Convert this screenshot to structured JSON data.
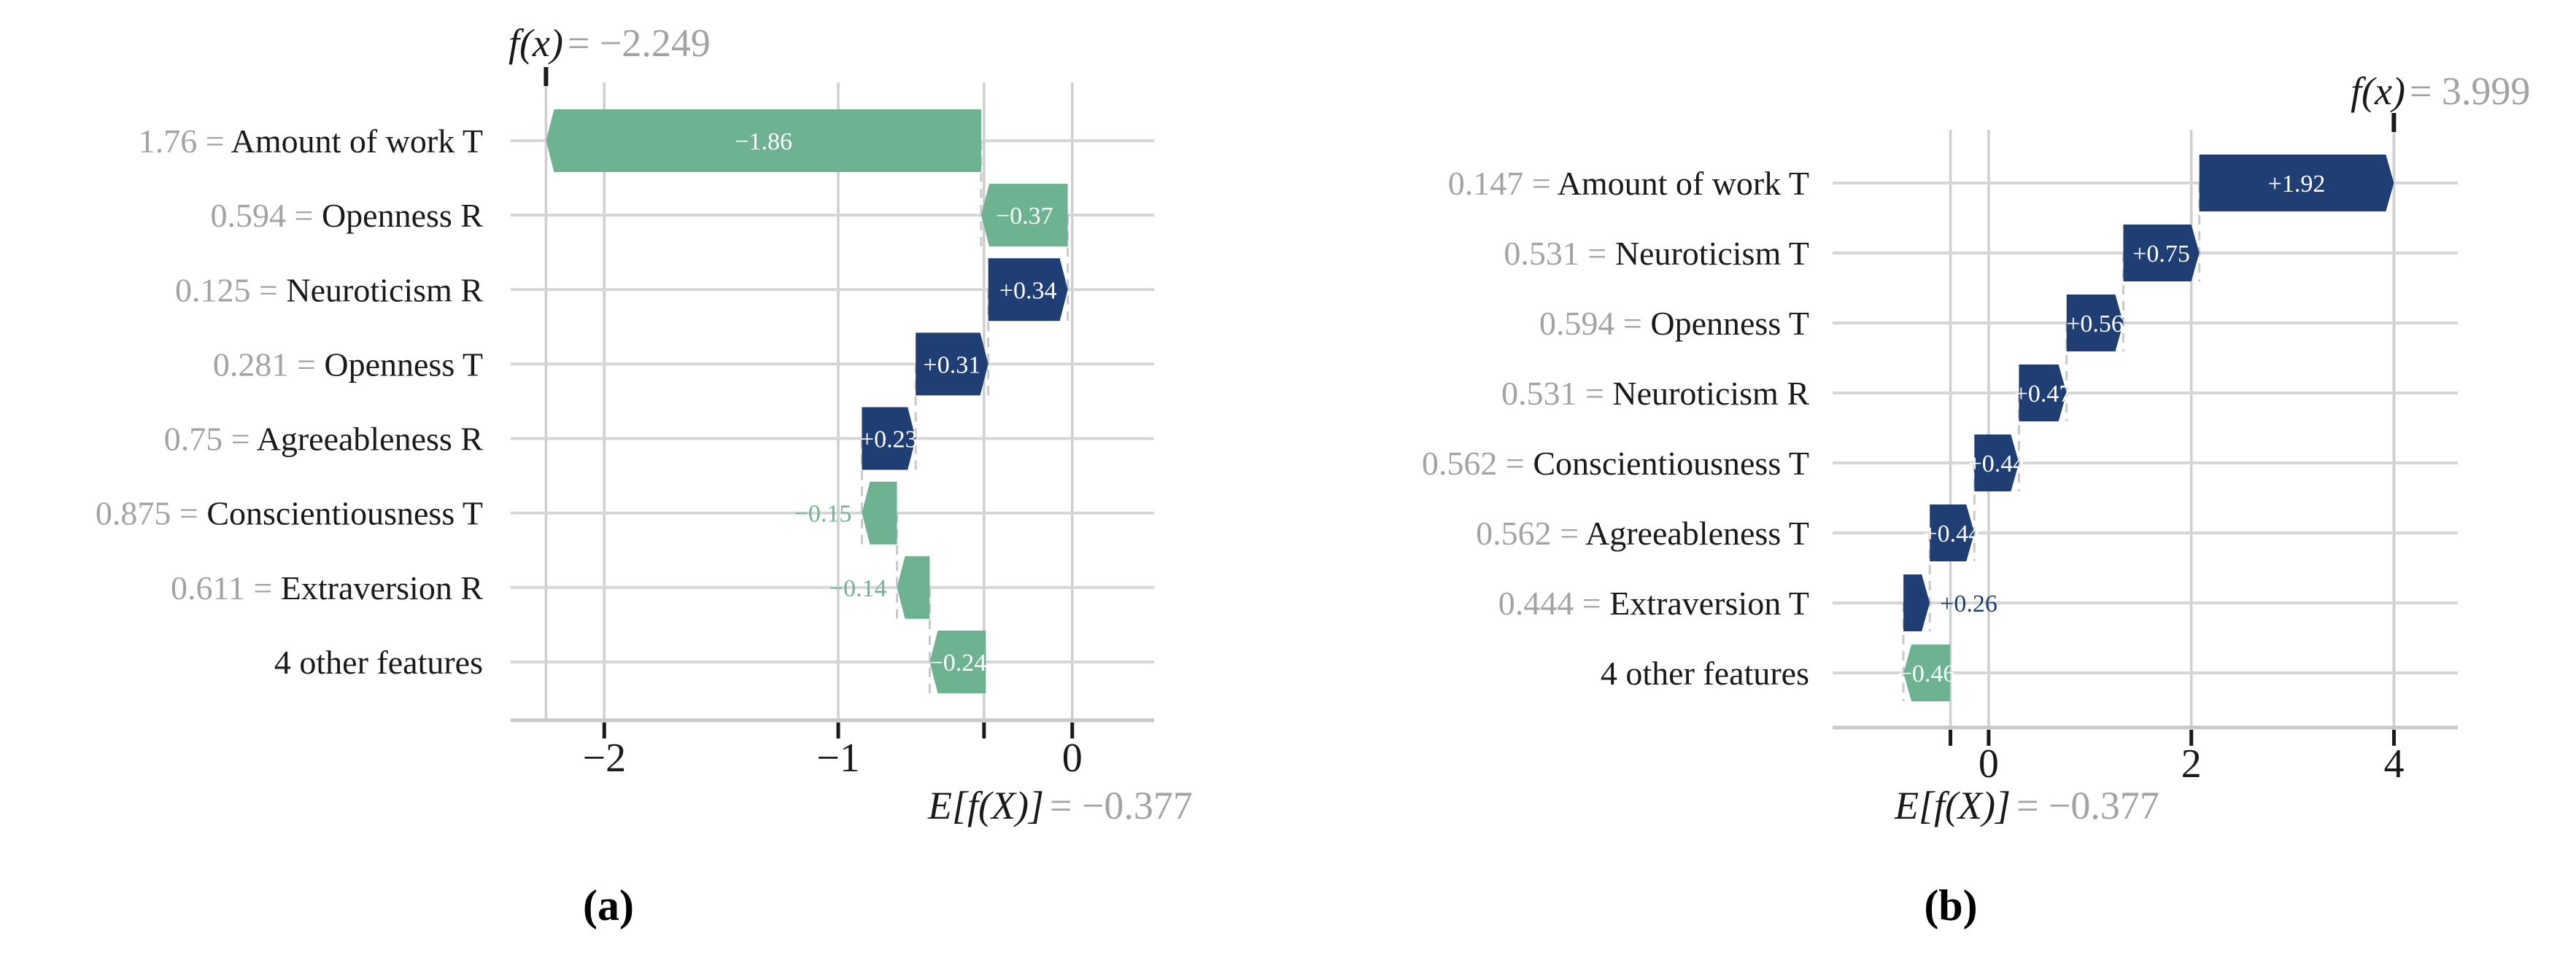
{
  "colors": {
    "positive_bar": "#1f3e73",
    "negative_bar": "#6db291",
    "bar_text": "#ffffff",
    "grid_line": "#cfcfcf",
    "row_line": "#d6d6d6",
    "axis_line": "#c8c8c8",
    "dashed_connector": "#c9c9c9",
    "tick_mark": "#1a1a1a",
    "text_dark": "#1a1a1a",
    "text_gray": "#a3a3a3"
  },
  "chart_data": [
    {
      "type": "waterfall",
      "caption": "(a)",
      "fx": -2.249,
      "base": -0.377,
      "fx_label": "f(x)",
      "fx_eq_label": "= −2.249",
      "base_label": "E[f(X)]",
      "base_eq_label": "= −0.377",
      "xlim": [
        -2.4,
        0.35
      ],
      "xticks": [
        {
          "v": -2,
          "label": "−2"
        },
        {
          "v": -1,
          "label": "−1"
        },
        {
          "v": 0,
          "label": "0"
        }
      ],
      "rows": [
        {
          "prefix": "1.76 = ",
          "name": "Amount of work T",
          "value": -1.86,
          "label": "−1.86"
        },
        {
          "prefix": "0.594 = ",
          "name": "Openness R",
          "value": -0.37,
          "label": "−0.37"
        },
        {
          "prefix": "0.125 = ",
          "name": "Neuroticism R",
          "value": 0.34,
          "label": "+0.34"
        },
        {
          "prefix": "0.281 = ",
          "name": "Openness T",
          "value": 0.31,
          "label": "+0.31"
        },
        {
          "prefix": "0.75 = ",
          "name": "Agreeableness R",
          "value": 0.23,
          "label": "+0.23"
        },
        {
          "prefix": "0.875 = ",
          "name": "Conscientiousness T",
          "value": -0.15,
          "label": "−0.15"
        },
        {
          "prefix": "0.611 = ",
          "name": "Extraversion R",
          "value": -0.14,
          "label": "−0.14"
        },
        {
          "prefix": "",
          "name": "4 other features",
          "value": -0.24,
          "label": "−0.24"
        }
      ]
    },
    {
      "type": "waterfall",
      "caption": "(b)",
      "fx": 3.999,
      "base": -0.377,
      "fx_label": "f(x)",
      "fx_eq_label": "= 3.999",
      "base_label": "E[f(X)]",
      "base_eq_label": "= −0.377",
      "xlim": [
        -1.54,
        4.63
      ],
      "xticks": [
        {
          "v": 0,
          "label": "0"
        },
        {
          "v": 2,
          "label": "2"
        },
        {
          "v": 4,
          "label": "4"
        }
      ],
      "rows": [
        {
          "prefix": "0.147 = ",
          "name": "Amount of work T",
          "value": 1.92,
          "label": "+1.92"
        },
        {
          "prefix": "0.531 = ",
          "name": "Neuroticism T",
          "value": 0.75,
          "label": "+0.75"
        },
        {
          "prefix": "0.594 = ",
          "name": "Openness T",
          "value": 0.56,
          "label": "+0.56"
        },
        {
          "prefix": "0.531 = ",
          "name": "Neuroticism R",
          "value": 0.47,
          "label": "+0.47"
        },
        {
          "prefix": "0.562 = ",
          "name": "Conscientiousness T",
          "value": 0.44,
          "label": "+0.44"
        },
        {
          "prefix": "0.562 = ",
          "name": "Agreeableness T",
          "value": 0.44,
          "label": "+0.44"
        },
        {
          "prefix": "0.444 = ",
          "name": "Extraversion T",
          "value": 0.26,
          "label": "+0.26"
        },
        {
          "prefix": "",
          "name": "4 other features",
          "value": -0.46,
          "label": "−0.46"
        }
      ]
    }
  ]
}
